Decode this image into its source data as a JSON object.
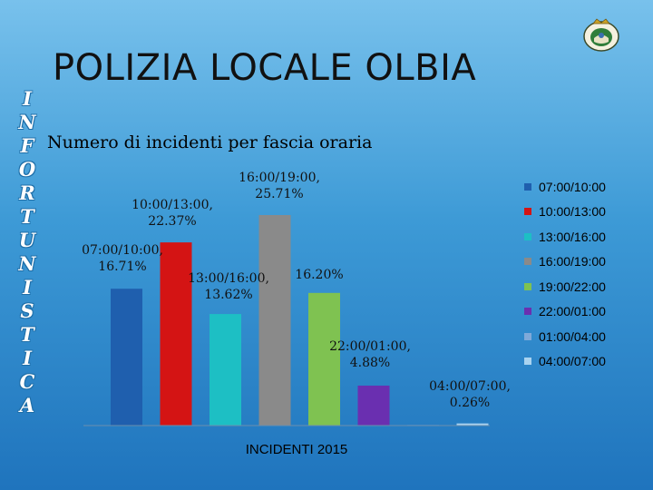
{
  "page": {
    "title": "POLIZIA LOCALE OLBIA",
    "side_letters": [
      "I",
      "N",
      "F",
      "O",
      "R",
      "T",
      "U",
      "N",
      "I",
      "S",
      "T",
      "I",
      "C",
      "A"
    ]
  },
  "colors": {
    "background_top": "#78c1ec",
    "background_bottom": "#1f74bd",
    "side_text_outline": "#1e6ea8"
  },
  "emblem": {
    "icon": "crest-icon"
  },
  "chart_data": {
    "type": "bar",
    "title": "Numero di incidenti per fascia oraria",
    "xlabel": "INCIDENTI 2015",
    "ylabel": "",
    "unit": "%",
    "ylim": [
      0,
      30
    ],
    "grid": false,
    "legend_position": "right",
    "series": [
      {
        "name": "07:00/10:00",
        "value": 16.71,
        "label": "07:00/10:00,\n16.71%",
        "color": "#1f5fae"
      },
      {
        "name": "10:00/13:00",
        "value": 22.37,
        "label": "10:00/13:00,\n22.37%",
        "color": "#d41414"
      },
      {
        "name": "13:00/16:00",
        "value": 13.62,
        "label": "13:00/16:00,\n13.62%",
        "color": "#1dbfc4"
      },
      {
        "name": "16:00/19:00",
        "value": 25.71,
        "label": "16:00/19:00,\n25.71%",
        "color": "#8a8a8a"
      },
      {
        "name": "19:00/22:00",
        "value": 16.2,
        "label": "16.20%",
        "color": "#7fc251"
      },
      {
        "name": "22:00/01:00",
        "value": 4.88,
        "label": "22:00/01:00,\n4.88%",
        "color": "#6a2fb0"
      },
      {
        "name": "01:00/04:00",
        "value": 0,
        "label": "",
        "color": "#7fa9d9"
      },
      {
        "name": "04:00/07:00",
        "value": 0.26,
        "label": "04:00/07:00,\n0.26%",
        "color": "#a9d3f0"
      }
    ]
  }
}
